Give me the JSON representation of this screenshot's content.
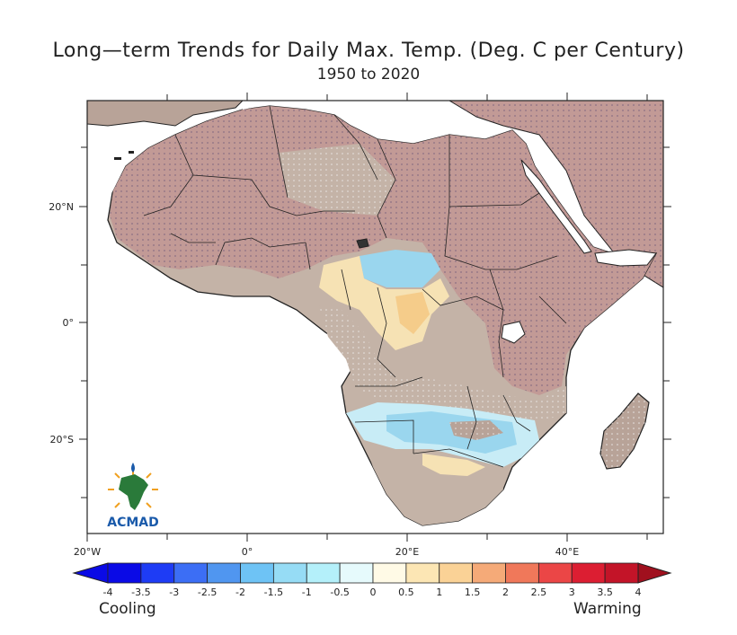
{
  "title": "Long—term Trends for Daily Max. Temp. (Deg. C per Century)",
  "subtitle": "1950 to 2020",
  "lat_labels": [
    "20°N",
    "0°",
    "20°S"
  ],
  "lon_labels": [
    "20°W",
    "0°",
    "20°E",
    "40°E"
  ],
  "colorbar": {
    "labels": [
      "-4",
      "-3.5",
      "-3",
      "-2.5",
      "-2",
      "-1.5",
      "-1",
      "-0.5",
      "0",
      "0.5",
      "1",
      "1.5",
      "2",
      "2.5",
      "3",
      "3.5",
      "4"
    ],
    "colors": [
      "#0a0ae6",
      "#1e3cf5",
      "#3c6ef5",
      "#5096f0",
      "#6ec3f5",
      "#96dcf5",
      "#b4f0fa",
      "#e6fafc",
      "#fffae6",
      "#fce6b4",
      "#fad296",
      "#f5aa78",
      "#f0785a",
      "#eb4646",
      "#dc1e32",
      "#c31428"
    ],
    "low_label": "Cooling",
    "high_label": "Warming"
  },
  "logo": {
    "text": "ACMAD",
    "colors": [
      "#2a7a3a",
      "#f0a020",
      "#1a5aaa"
    ]
  },
  "map_colors": {
    "land": "#b8a398",
    "warming": "#c29a96",
    "neutral": "#c4b3a7",
    "cool_light": "#c8ecf6",
    "cool": "#9ad6ee",
    "warm_light": "#f6e2b4",
    "sea": "#ffffff"
  }
}
